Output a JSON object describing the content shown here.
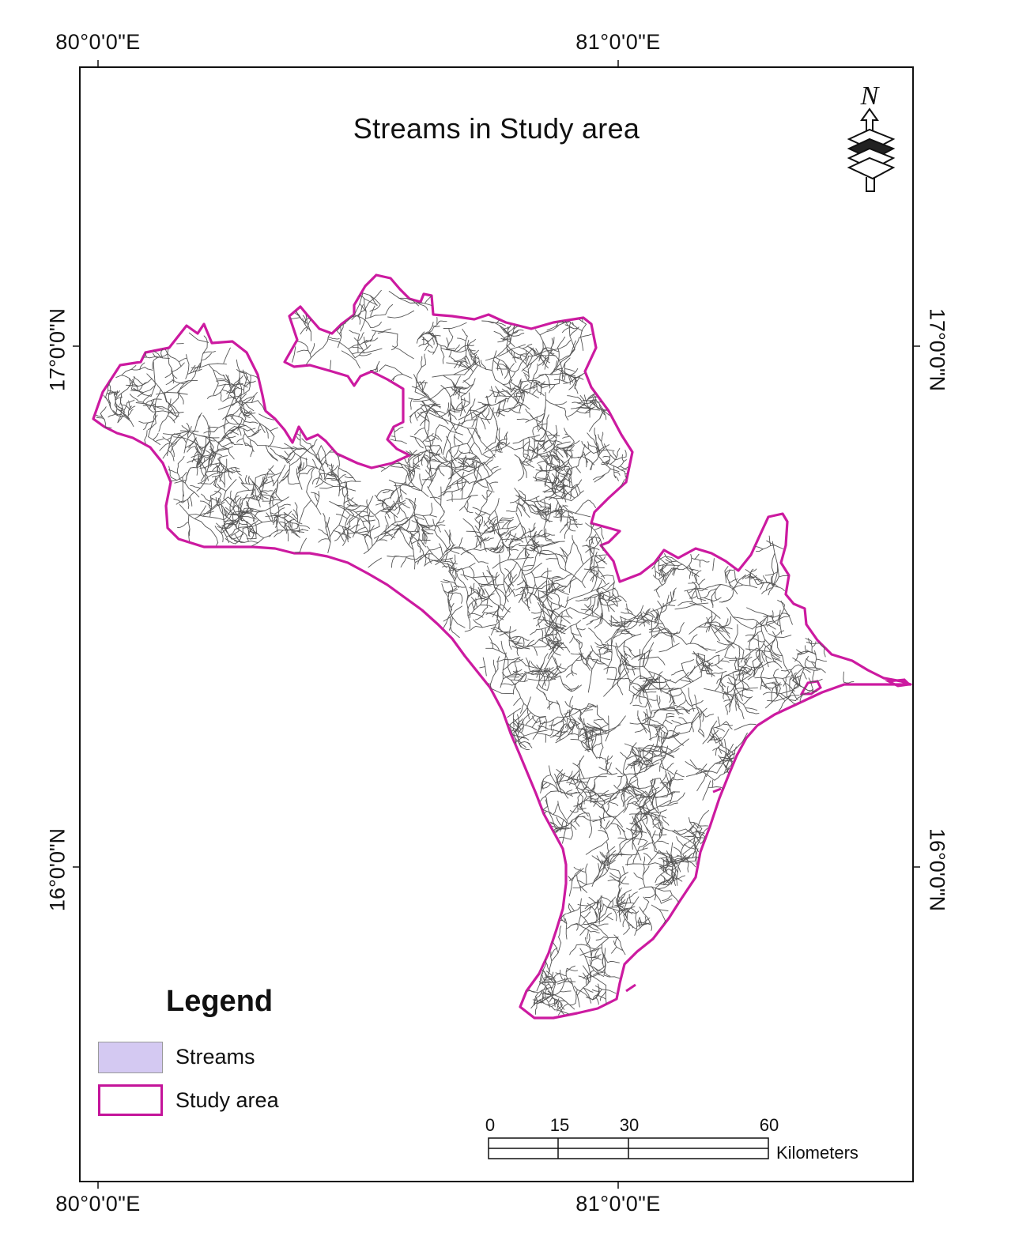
{
  "map": {
    "title": "Streams in Study area",
    "north_arrow_letter": "N",
    "graticule": {
      "top": [
        "80°0'0\"E",
        "81°0'0\"E"
      ],
      "bottom": [
        "80°0'0\"E",
        "81°0'0\"E"
      ],
      "left": [
        "17°0'0\"N",
        "16°0'0\"N"
      ],
      "right": [
        "17°0'0\"N",
        "16°0'0\"N"
      ]
    },
    "legend": {
      "title": "Legend",
      "items": [
        {
          "label": "Streams",
          "fill": "#d4c9f2",
          "stroke": "#9a9a9a"
        },
        {
          "label": "Study area",
          "fill": "#ffffff",
          "stroke": "#c4149a"
        }
      ]
    },
    "scale_bar": {
      "ticks": [
        "0",
        "15",
        "30",
        "60"
      ],
      "unit": "Kilometers"
    },
    "colors": {
      "boundary": "#cc1aa0",
      "streams": "#555555",
      "frame": "#111111"
    }
  }
}
